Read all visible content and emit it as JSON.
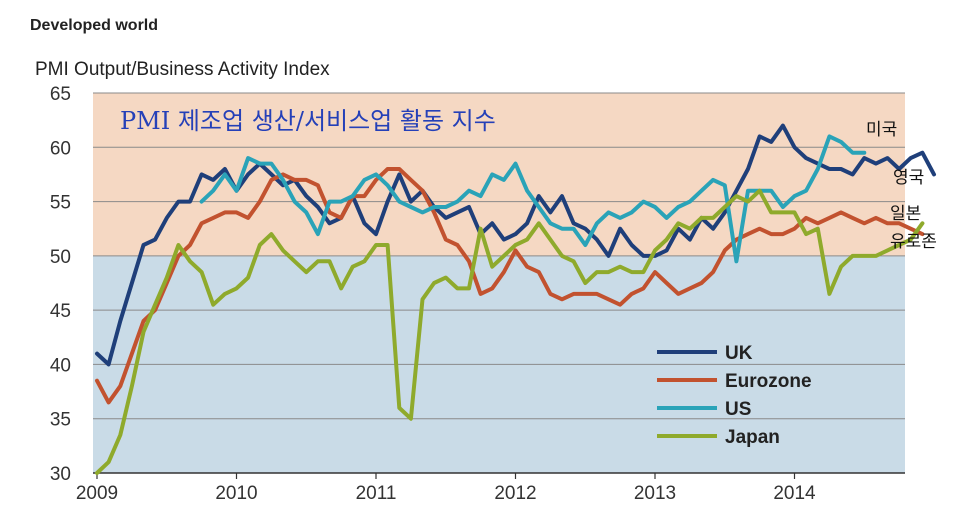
{
  "header": "Developed world",
  "overlay_title": "PMI 제조업 생산/서비스업 활동 지수",
  "annotations": [
    "미국",
    "영국",
    "일본",
    "유로존"
  ],
  "chart_data": {
    "type": "line",
    "title": "PMI Output/Business Activity Index",
    "xlabel": "",
    "ylabel": "",
    "x_ticks": [
      "2009",
      "2010",
      "2011",
      "2012",
      "2013",
      "2014"
    ],
    "y_ticks": [
      30,
      35,
      40,
      45,
      50,
      55,
      60,
      65
    ],
    "ylim": [
      30,
      65
    ],
    "x_range": [
      "2009-01",
      "2014-10"
    ],
    "bands": [
      {
        "from": 30,
        "to": 50,
        "color": "#c9dbe7"
      },
      {
        "from": 50,
        "to": 65,
        "color": "#f5d8c3"
      }
    ],
    "grid": true,
    "legend_position": "bottom-right",
    "series": [
      {
        "name": "UK",
        "color": "#1f3f7a",
        "start": "2009-01",
        "values": [
          41,
          40,
          44,
          47.5,
          51,
          51.5,
          53.5,
          55,
          55,
          57.5,
          57,
          58,
          56,
          57.5,
          58.5,
          57.5,
          56.5,
          57,
          55.5,
          54.5,
          53,
          53.5,
          55.5,
          53,
          52,
          55,
          57.5,
          55,
          56,
          54.5,
          53.5,
          54,
          54.5,
          52,
          53,
          51.5,
          52,
          53,
          55.5,
          54,
          55.5,
          53,
          52.5,
          51.5,
          50,
          52.5,
          51,
          50,
          50,
          50.5,
          52.5,
          51.5,
          53.5,
          52.5,
          54,
          56,
          58,
          61,
          60.5,
          62,
          60,
          59,
          58.5,
          58,
          58,
          57.5,
          59,
          58.5,
          59,
          58,
          59,
          59.5,
          57.5
        ]
      },
      {
        "name": "Eurozone",
        "color": "#c2522f",
        "start": "2009-01",
        "values": [
          38.5,
          36.5,
          38,
          41,
          44,
          45,
          47.5,
          50,
          51,
          53,
          53.5,
          54,
          54,
          53.5,
          55,
          57,
          57.5,
          57,
          57,
          56.5,
          54,
          53.5,
          55.5,
          55.5,
          57,
          58,
          58,
          57,
          56,
          54,
          51.5,
          51,
          49.5,
          46.5,
          47,
          48.5,
          50.5,
          49,
          48.5,
          46.5,
          46,
          46.5,
          46.5,
          46.5,
          46,
          45.5,
          46.5,
          47,
          48.5,
          47.5,
          46.5,
          47,
          47.5,
          48.5,
          50.5,
          51.5,
          52,
          52.5,
          52,
          52,
          52.5,
          53.5,
          53,
          53.5,
          54,
          53.5,
          53,
          53.5,
          53,
          53,
          52.5,
          52
        ]
      },
      {
        "name": "US",
        "color": "#2aa3b8",
        "start": "2009-10",
        "values": [
          55,
          56,
          57.5,
          56,
          59,
          58.5,
          58.5,
          57,
          55,
          54,
          52,
          55,
          55,
          55.5,
          57,
          57.5,
          56.5,
          55,
          54.5,
          54,
          54.5,
          54.5,
          55,
          56,
          55.5,
          57.5,
          57,
          58.5,
          56,
          54.5,
          53,
          52.5,
          52.5,
          51,
          53,
          54,
          53.5,
          54,
          55,
          54.5,
          53.5,
          54.5,
          55,
          56,
          57,
          56.5,
          49.5,
          56,
          56,
          56,
          54.5,
          55.5,
          56,
          58,
          61,
          60.5,
          59.5,
          59.5
        ]
      },
      {
        "name": "Japan",
        "color": "#8faa2c",
        "start": "2009-01",
        "values": [
          30,
          31,
          33.5,
          38,
          43,
          45.5,
          48,
          51,
          49.5,
          48.5,
          45.5,
          46.5,
          47,
          48,
          51,
          52,
          50.5,
          49.5,
          48.5,
          49.5,
          49.5,
          47,
          49,
          49.5,
          51,
          51,
          36,
          35,
          46,
          47.5,
          48,
          47,
          47,
          52.5,
          49,
          50,
          51,
          51.5,
          53,
          51.5,
          50,
          49.5,
          47.5,
          48.5,
          48.5,
          49,
          48.5,
          48.5,
          50.5,
          51.5,
          53,
          52.5,
          53.5,
          53.5,
          54.5,
          55.5,
          55,
          56,
          54,
          54,
          54,
          52,
          52.5,
          46.5,
          49,
          50,
          50,
          50,
          50.5,
          51,
          51.5,
          53
        ]
      }
    ]
  }
}
